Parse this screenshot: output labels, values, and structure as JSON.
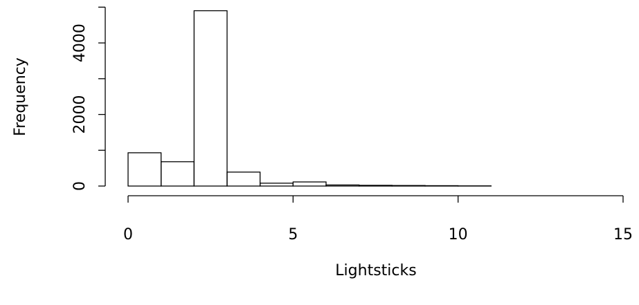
{
  "chart_data": {
    "type": "histogram",
    "x_label": "Lightsticks",
    "y_label": "Frequency",
    "bins": [
      0,
      1,
      2,
      3,
      4,
      5,
      6,
      7,
      8,
      9,
      10,
      11,
      12,
      13,
      14,
      15
    ],
    "values": [
      930,
      680,
      4900,
      390,
      80,
      115,
      30,
      20,
      15,
      10,
      5,
      0,
      0,
      0,
      0
    ],
    "color": "none",
    "xlim": [
      0,
      15
    ],
    "xticks": [
      0,
      5,
      10,
      15
    ],
    "ylim": [
      0,
      5200
    ],
    "yticks": [
      0,
      2000,
      4000
    ],
    "yticks_unlabeled": [
      1000,
      3000,
      5000
    ]
  }
}
